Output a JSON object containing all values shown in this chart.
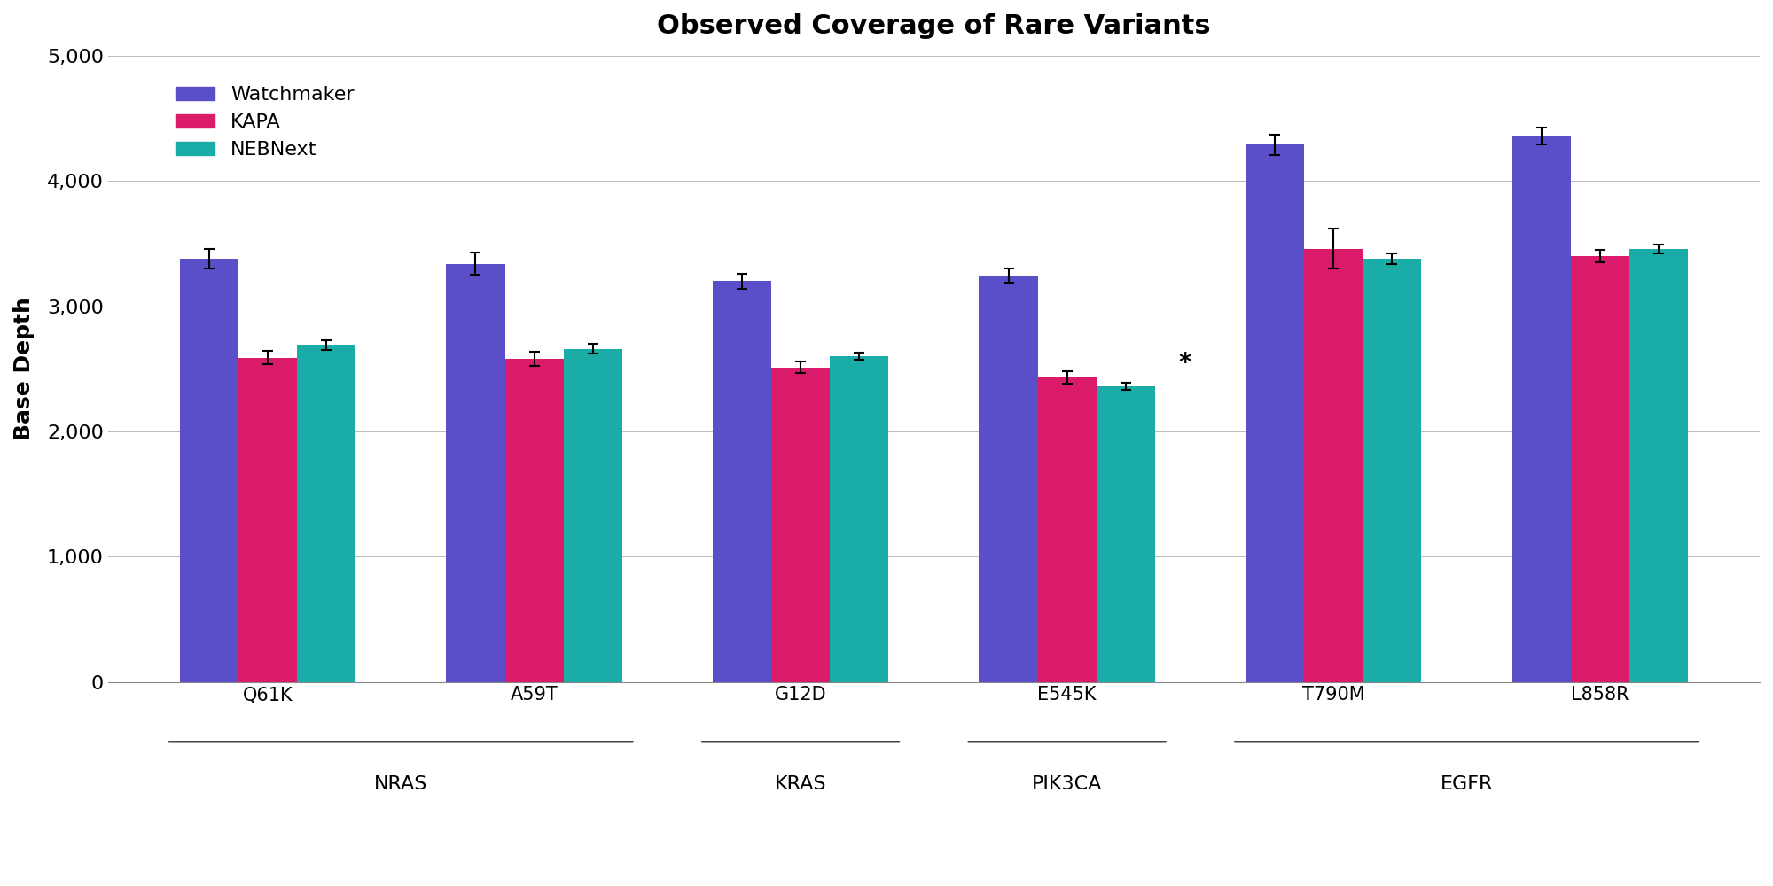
{
  "title": "Observed Coverage of Rare Variants",
  "ylabel": "Base Depth",
  "ylim": [
    0,
    5000
  ],
  "yticks": [
    0,
    1000,
    2000,
    3000,
    4000,
    5000
  ],
  "ytick_labels": [
    "0",
    "1,000",
    "2,000",
    "3,000",
    "4,000",
    "5,000"
  ],
  "categories": [
    "Q61K",
    "A59T",
    "G12D",
    "E545K",
    "T790M",
    "L858R"
  ],
  "gene_info": [
    {
      "label": "NRAS",
      "cats": [
        0,
        1
      ]
    },
    {
      "label": "KRAS",
      "cats": [
        2,
        2
      ]
    },
    {
      "label": "PIK3CA",
      "cats": [
        3,
        3
      ]
    },
    {
      "label": "EGFR",
      "cats": [
        4,
        5
      ]
    }
  ],
  "series": {
    "Watchmaker": {
      "color": "#5B4FC9",
      "values": [
        3380,
        3340,
        3200,
        3245,
        4290,
        4360
      ],
      "errors": [
        80,
        90,
        60,
        60,
        80,
        70
      ]
    },
    "KAPA": {
      "color": "#D91B6A",
      "values": [
        2590,
        2580,
        2510,
        2430,
        3460,
        3400
      ],
      "errors": [
        55,
        55,
        45,
        50,
        160,
        50
      ]
    },
    "NEBNext": {
      "color": "#1AADA8",
      "values": [
        2690,
        2660,
        2600,
        2360,
        3380,
        3460
      ],
      "errors": [
        40,
        40,
        30,
        30,
        40,
        35
      ]
    }
  },
  "legend_labels": [
    "Watchmaker",
    "KAPA",
    "NEBNext"
  ],
  "star_annotation": {
    "category_idx": 3,
    "series": "NEBNext",
    "text": "*"
  },
  "background_color": "#FFFFFF",
  "bar_width": 0.22,
  "title_fontsize": 22,
  "axis_label_fontsize": 18,
  "tick_fontsize": 16,
  "legend_fontsize": 16,
  "category_fontsize": 15,
  "gene_label_fontsize": 16
}
